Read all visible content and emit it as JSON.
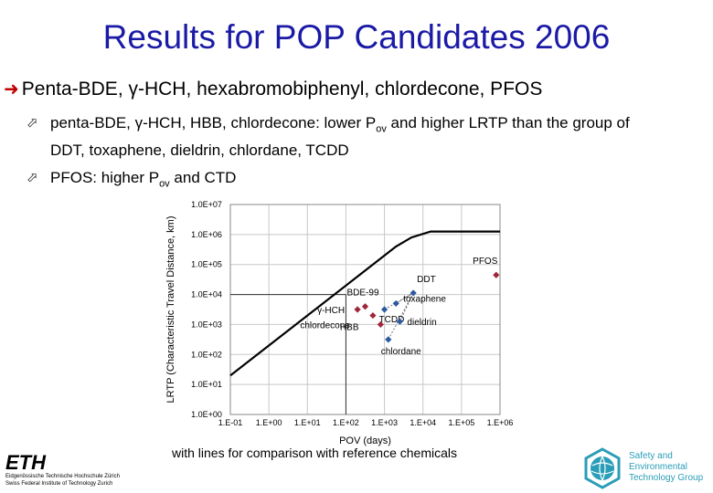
{
  "slide": {
    "title": "Results for POP Candidates 2006",
    "bullet": "Penta-BDE, γ-HCH, hexabromobiphenyl, chlordecone, PFOS",
    "sub1_a": "penta-BDE, γ-HCH, HBB, chlordecone: lower P",
    "sub1_sub": "ov",
    "sub1_b": " and higher LRTP than the group of DDT, toxaphene, dieldrin, chlordane, TCDD",
    "sub2_a": "PFOS: higher P",
    "sub2_sub": "ov",
    "sub2_b": " and CTD",
    "caption": "with lines for comparison with reference chemicals",
    "eth_logo": "ETH",
    "eth_line1": "Eidgenössische Technische Hochschule Zürich",
    "eth_line2": "Swiss Federal Institute of Technology Zurich",
    "seg_line1": "Safety and",
    "seg_line2": "Environmental",
    "seg_line3": "Technology Group"
  },
  "colors": {
    "title": "#1a1aa6",
    "arrow": "#c00000",
    "candidate": "#a0263a",
    "reference": "#2c5aa0",
    "seg": "#2a9db8"
  },
  "chart_data": {
    "type": "scatter",
    "xlabel": "POV (days)",
    "ylabel": "LRTP (Characteristic Travel Distance, km)",
    "x_ticks": [
      "1.E-01",
      "1.E+00",
      "1.E+01",
      "1.E+02",
      "1.E+03",
      "1.E+04",
      "1.E+05",
      "1.E+06"
    ],
    "y_ticks": [
      "1.0E+00",
      "1.0E+01",
      "1.0E+02",
      "1.0E+03",
      "1.0E+04",
      "1.0E+05",
      "1.0E+06",
      "1.0E+07"
    ],
    "xlim_log10": [
      -1,
      6
    ],
    "ylim_log10": [
      0,
      7
    ],
    "grid": true,
    "limit_curve": [
      [
        -1,
        1.3
      ],
      [
        2.3,
        4.6
      ],
      [
        3.3,
        5.6
      ],
      [
        3.7,
        5.9
      ],
      [
        4.2,
        6.1
      ],
      [
        6,
        6.1
      ]
    ],
    "reference_lines": {
      "x_log10": 2.0,
      "y_log10": 4.0
    },
    "points": [
      {
        "label": "PFOS",
        "group": "candidate",
        "x_log10": 5.9,
        "y_log10": 4.65
      },
      {
        "label": "BDE-99",
        "group": "candidate",
        "x_log10": 2.5,
        "y_log10": 3.6
      },
      {
        "label": "γ-HCH",
        "group": "candidate",
        "x_log10": 2.3,
        "y_log10": 3.5
      },
      {
        "label": "HBB",
        "group": "candidate",
        "x_log10": 2.7,
        "y_log10": 3.3
      },
      {
        "label": "chlordecone",
        "group": "candidate",
        "x_log10": 2.9,
        "y_log10": 3.0
      },
      {
        "label": "DDT",
        "group": "reference",
        "x_log10": 3.75,
        "y_log10": 4.05
      },
      {
        "label": "toxaphene",
        "group": "reference",
        "x_log10": 3.3,
        "y_log10": 3.7
      },
      {
        "label": "TCDD",
        "group": "reference",
        "x_log10": 3.0,
        "y_log10": 3.5
      },
      {
        "label": "dieldrin",
        "group": "reference",
        "x_log10": 3.4,
        "y_log10": 3.1
      },
      {
        "label": "chlordane",
        "group": "reference",
        "x_log10": 3.1,
        "y_log10": 2.5
      }
    ]
  }
}
